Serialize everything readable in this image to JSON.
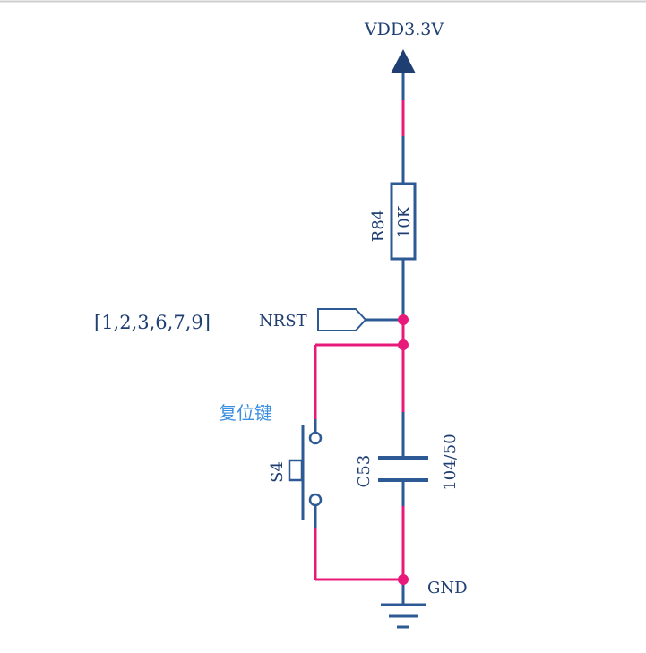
{
  "schematic": {
    "power": {
      "label": "VDD3.3V"
    },
    "resistor": {
      "ref": "R84",
      "value": "10K"
    },
    "net": {
      "name": "NRST",
      "sheets": "[1,2,3,6,7,9]"
    },
    "switch": {
      "ref": "S4",
      "description": "复位键"
    },
    "capacitor": {
      "ref": "C53",
      "value": "104/50"
    },
    "ground": {
      "label": "GND"
    }
  },
  "colors": {
    "wire": "#2d5a94",
    "net": "#e8197a",
    "junction": "#e8197a",
    "label": "#1f3f73",
    "note": "#3d8fe0"
  }
}
